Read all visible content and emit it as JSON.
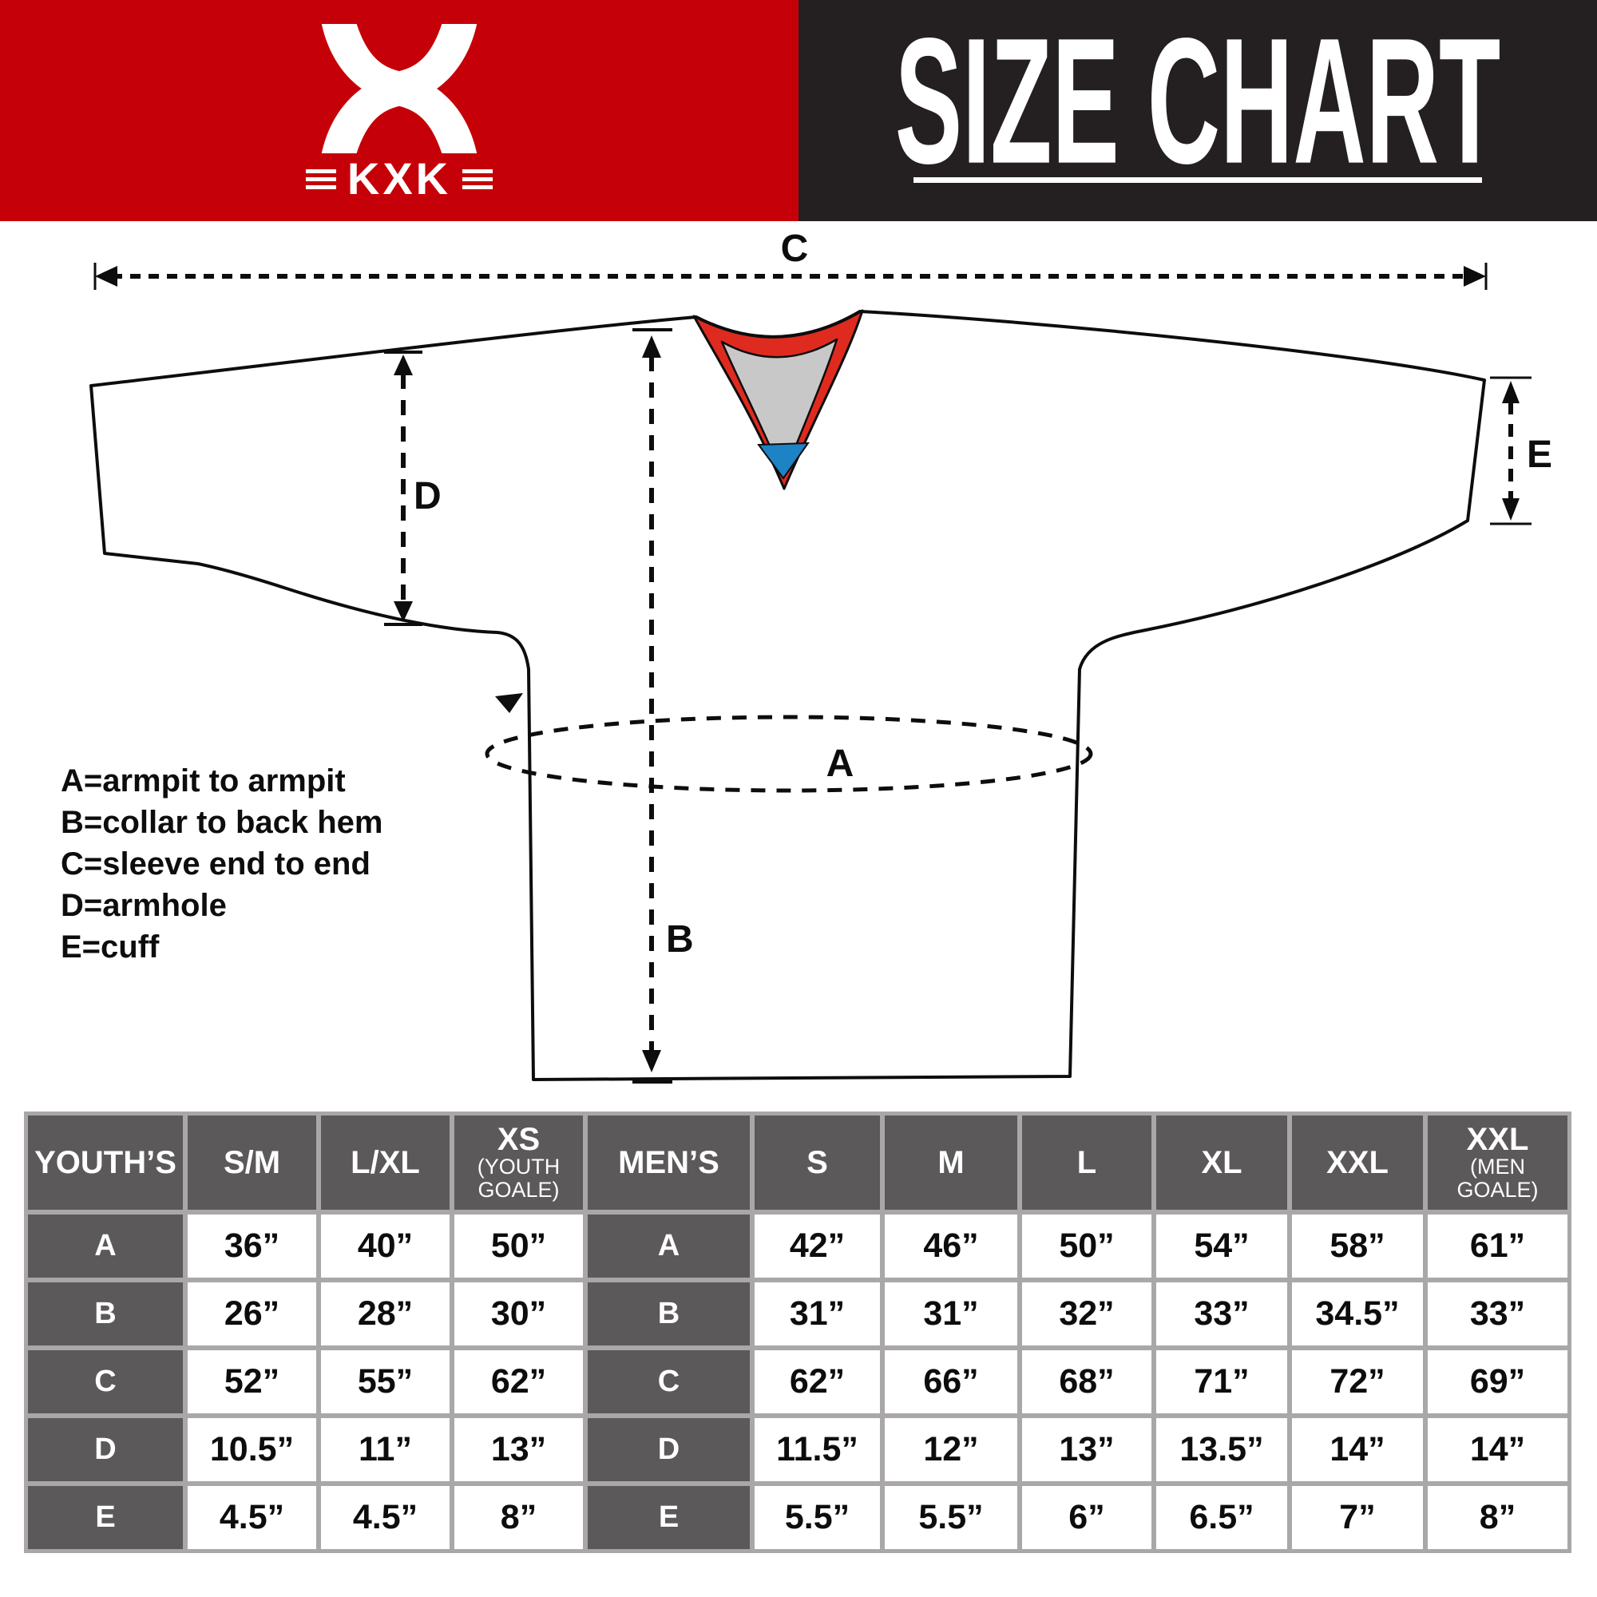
{
  "banner": {
    "logo": {
      "text": "KXK"
    },
    "title": "SIZE CHART"
  },
  "diagram": {
    "measure_labels": [
      "A",
      "B",
      "C",
      "D",
      "E"
    ],
    "legend": [
      "A=armpit to armpit",
      "B=collar to back hem",
      "C=sleeve end to end",
      "D=armhole",
      "E=cuff"
    ]
  },
  "size_table": {
    "groups": [
      {
        "name": "YOUTH’S",
        "columns": [
          {
            "label": "S/M",
            "sub_lines": []
          },
          {
            "label": "L/XL",
            "sub_lines": []
          },
          {
            "label": "XS",
            "sub_lines": [
              "(YOUTH",
              "GOALE)"
            ]
          }
        ],
        "rows": [
          {
            "label": "A",
            "values": [
              "36”",
              "40”",
              "50”"
            ]
          },
          {
            "label": "B",
            "values": [
              "26”",
              "28”",
              "30”"
            ]
          },
          {
            "label": "C",
            "values": [
              "52”",
              "55”",
              "62”"
            ]
          },
          {
            "label": "D",
            "values": [
              "10.5”",
              "11”",
              "13”"
            ]
          },
          {
            "label": "E",
            "values": [
              "4.5”",
              "4.5”",
              "8”"
            ]
          }
        ]
      },
      {
        "name": "MEN’S",
        "columns": [
          {
            "label": "S",
            "sub_lines": []
          },
          {
            "label": "M",
            "sub_lines": []
          },
          {
            "label": "L",
            "sub_lines": []
          },
          {
            "label": "XL",
            "sub_lines": []
          },
          {
            "label": "XXL",
            "sub_lines": []
          },
          {
            "label": "XXL",
            "sub_lines": [
              "(MEN",
              "GOALE)"
            ]
          }
        ],
        "rows": [
          {
            "label": "A",
            "values": [
              "42”",
              "46”",
              "50”",
              "54”",
              "58”",
              "61”"
            ]
          },
          {
            "label": "B",
            "values": [
              "31”",
              "31”",
              "32”",
              "33”",
              "34.5”",
              "33”"
            ]
          },
          {
            "label": "C",
            "values": [
              "62”",
              "66”",
              "68”",
              "71”",
              "72”",
              "69”"
            ]
          },
          {
            "label": "D",
            "values": [
              "11.5”",
              "12”",
              "13”",
              "13.5”",
              "14”",
              "14”"
            ]
          },
          {
            "label": "E",
            "values": [
              "5.5”",
              "5.5”",
              "6”",
              "6.5”",
              "7”",
              "8”"
            ]
          }
        ]
      }
    ]
  },
  "colors": {
    "brand_red": "#c60008",
    "banner_dark": "#242021",
    "cell_dark": "#5b595a",
    "separator_gray": "#a9a7a8",
    "collar_red": "#df2b1f",
    "collar_gray": "#c8c8c8",
    "collar_blue": "#1d83c5"
  }
}
